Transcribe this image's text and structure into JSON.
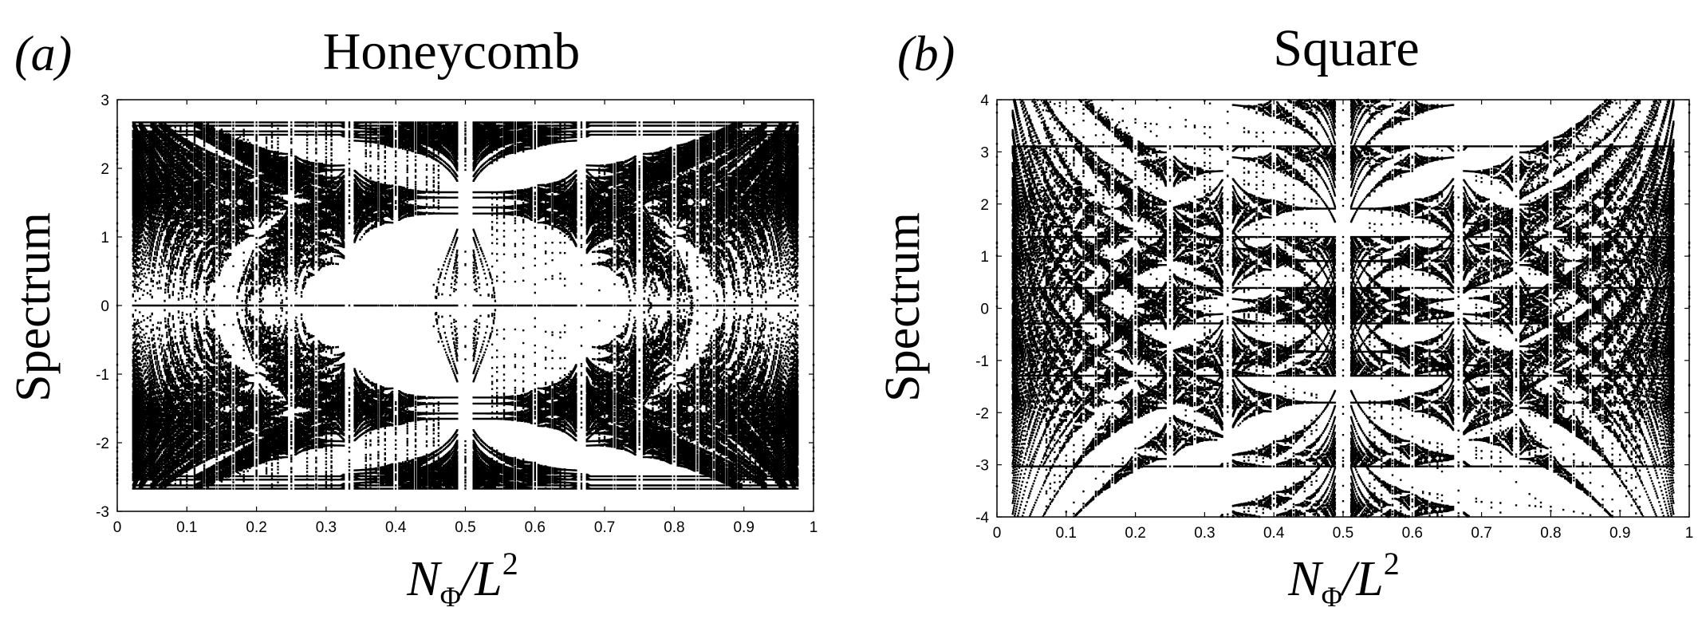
{
  "chart_data": [
    {
      "type": "scatter",
      "panel_label": "(a)",
      "title": "Honeycomb",
      "xlabel": "N_Φ/L²",
      "ylabel": "Spectrum",
      "xlim": [
        0,
        1
      ],
      "ylim": [
        -3,
        3
      ],
      "x_ticks": [
        "0",
        "0.1",
        "0.2",
        "0.3",
        "0.4",
        "0.5",
        "0.6",
        "0.7",
        "0.8",
        "0.9",
        "1"
      ],
      "y_ticks": [
        "3",
        "2",
        "1",
        "0",
        "-1",
        "-2",
        "-3"
      ],
      "lattice": "honeycomb",
      "grid": false,
      "legend": "none",
      "series": [
        {
          "description_values": "Hofstadter butterfly spectrum: energy eigenvalues E vs flux N_Φ/L² in [0,1], symmetric about E=0, bandwidth ±3",
          "band_edges_at_x0": [
            -3,
            3
          ],
          "band_edges_at_x0_5": [
            -2.45,
            2.45
          ]
        }
      ]
    },
    {
      "type": "scatter",
      "panel_label": "(b)",
      "title": "Square",
      "xlabel": "N_Φ/L²",
      "ylabel": "Spectrum",
      "xlim": [
        0,
        1
      ],
      "ylim": [
        -4,
        4
      ],
      "x_ticks": [
        "0",
        "0.1",
        "0.2",
        "0.3",
        "0.4",
        "0.5",
        "0.6",
        "0.7",
        "0.8",
        "0.9",
        "1"
      ],
      "y_ticks": [
        "4",
        "3",
        "2",
        "1",
        "0",
        "-1",
        "-2",
        "-3",
        "-4"
      ],
      "lattice": "square",
      "grid": false,
      "legend": "none",
      "series": [
        {
          "description_values": "Hofstadter butterfly spectrum: energy eigenvalues E vs flux N_Φ/L² in [0,1], symmetric about E=0, bandwidth ±4",
          "band_edges_at_x0": [
            -4,
            4
          ],
          "band_edges_at_x0_5": [
            -2.83,
            2.83
          ]
        }
      ]
    }
  ],
  "labels": {
    "a_letter": "(a)",
    "a_title": "Honeycomb",
    "a_ylabel": "Spectrum",
    "b_letter": "(b)",
    "b_title": "Square",
    "b_ylabel": "Spectrum",
    "x_main": "N",
    "x_sub": "Φ",
    "x_slash": "/L",
    "x_sup": "2"
  },
  "colors": {
    "ink": "#000000",
    "background": "#ffffff"
  }
}
